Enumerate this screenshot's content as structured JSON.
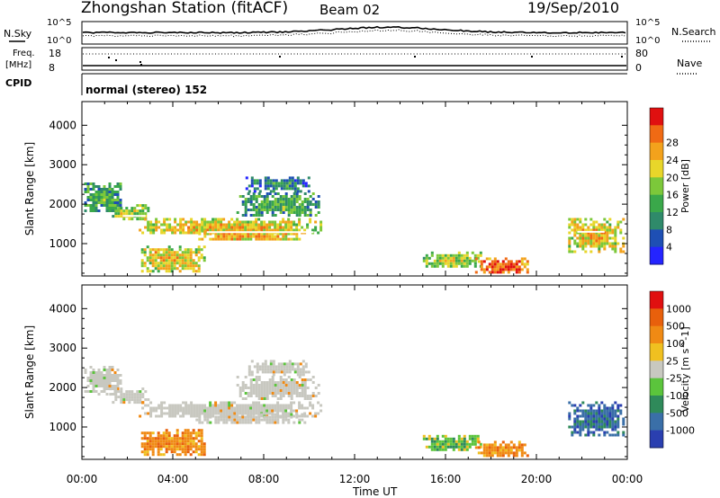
{
  "header": {
    "title": "Zhongshan Station (fitACF)",
    "beam": "Beam 02",
    "date": "19/Sep/2010"
  },
  "strip": {
    "nsky_label": "N.Sky",
    "nsky_ticks": [
      "10^5",
      "10^0"
    ],
    "nsearch_label": "N.Search",
    "nsearch_ticks": [
      "10^5",
      "10^0"
    ],
    "freq_label": "Freq.",
    "freq_unit": "[MHz]",
    "freq_ticks": [
      "18",
      "8"
    ],
    "nave_label": "Nave",
    "nave_ticks": [
      "80",
      "0"
    ],
    "cpid_label": "CPID",
    "cpid_text": "normal (stereo) 152"
  },
  "axes": {
    "xlabel": "Time UT",
    "ylabel": "Slant Range [km]",
    "xticks": [
      "00:00",
      "04:00",
      "08:00",
      "12:00",
      "16:00",
      "20:00",
      "00:00"
    ],
    "yticks": [
      "1000",
      "2000",
      "3000",
      "4000"
    ]
  },
  "chart_data": [
    {
      "type": "heatmap",
      "panel": "power",
      "title": "",
      "xlabel": "Time UT",
      "ylabel": "Slant Range [km]",
      "xlim": [
        0,
        24
      ],
      "ylim": [
        180,
        4600
      ],
      "colorbar": {
        "label": "Power [dB]",
        "ticks": [
          "4",
          "8",
          "12",
          "16",
          "20",
          "24",
          "28"
        ],
        "colors": [
          "#2424ff",
          "#1e4fb4",
          "#2f8a6a",
          "#3aa84a",
          "#7cc83a",
          "#e8d62a",
          "#f3a21c",
          "#f06a14",
          "#e01010"
        ]
      },
      "echo_regions": [
        {
          "t": [
            0.1,
            1.7
          ],
          "r": [
            1850,
            2550
          ],
          "level": 0.3
        },
        {
          "t": [
            1.2,
            2.9
          ],
          "r": [
            1600,
            2000
          ],
          "level": 0.45
        },
        {
          "t": [
            2.5,
            10.5
          ],
          "r": [
            1250,
            1650
          ],
          "level": 0.55
        },
        {
          "t": [
            5.0,
            9.8
          ],
          "r": [
            1100,
            1350
          ],
          "level": 0.6
        },
        {
          "t": [
            2.6,
            5.4
          ],
          "r": [
            300,
            950
          ],
          "level": 0.55
        },
        {
          "t": [
            6.8,
            10.4
          ],
          "r": [
            1700,
            2300
          ],
          "level": 0.3
        },
        {
          "t": [
            7.2,
            10.0
          ],
          "r": [
            2350,
            2700
          ],
          "level": 0.2
        },
        {
          "t": [
            15.0,
            17.6
          ],
          "r": [
            400,
            800
          ],
          "level": 0.45
        },
        {
          "t": [
            17.3,
            19.6
          ],
          "r": [
            250,
            650
          ],
          "level": 0.75
        },
        {
          "t": [
            21.4,
            23.8
          ],
          "r": [
            800,
            1650
          ],
          "level": 0.55
        }
      ]
    },
    {
      "type": "heatmap",
      "panel": "velocity",
      "title": "",
      "xlabel": "Time UT",
      "ylabel": "Slant Range [km]",
      "xlim": [
        0,
        24
      ],
      "ylim": [
        180,
        4600
      ],
      "colorbar": {
        "label": "Velocity [m s^-1]",
        "ticks": [
          "1000",
          "500",
          "100",
          "25",
          "-25",
          "-100",
          "-500",
          "-1000"
        ],
        "colors": [
          "#2a3fb0",
          "#3a6fa8",
          "#2f8a5a",
          "#5bc43c",
          "#c8c8c0",
          "#f0c020",
          "#f08a14",
          "#e8600c",
          "#e01010"
        ]
      },
      "echo_regions": [
        {
          "t": [
            0.1,
            1.7
          ],
          "r": [
            1850,
            2550
          ],
          "cls": "gray"
        },
        {
          "t": [
            1.2,
            2.9
          ],
          "r": [
            1600,
            2000
          ],
          "cls": "gray"
        },
        {
          "t": [
            2.5,
            10.5
          ],
          "r": [
            1250,
            1650
          ],
          "cls": "gray"
        },
        {
          "t": [
            5.0,
            9.8
          ],
          "r": [
            1100,
            1350
          ],
          "cls": "gray"
        },
        {
          "t": [
            2.6,
            5.4
          ],
          "r": [
            300,
            950
          ],
          "cls": "orange"
        },
        {
          "t": [
            6.8,
            10.4
          ],
          "r": [
            1700,
            2300
          ],
          "cls": "gray"
        },
        {
          "t": [
            7.2,
            10.0
          ],
          "r": [
            2350,
            2700
          ],
          "cls": "gray"
        },
        {
          "t": [
            15.0,
            17.6
          ],
          "r": [
            400,
            800
          ],
          "cls": "green"
        },
        {
          "t": [
            17.3,
            19.6
          ],
          "r": [
            250,
            650
          ],
          "cls": "orange"
        },
        {
          "t": [
            21.4,
            23.8
          ],
          "r": [
            800,
            1650
          ],
          "cls": "blue"
        }
      ]
    }
  ]
}
